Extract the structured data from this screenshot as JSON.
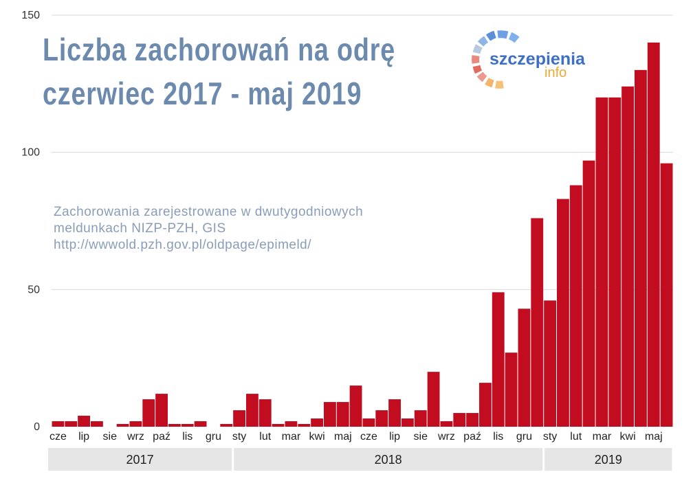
{
  "title_lines": [
    "Liczba zachorowań na odrę",
    "czerwiec 2017 - maj 2019"
  ],
  "subtitle_lines": [
    "Zachorowania zarejestrowane w dwutygodniowych",
    "meldunkach NIZP-PZH, GIS",
    "http://wwwold.pzh.gov.pl/oldpage/epimeld/"
  ],
  "logo": {
    "word1": "szczepienia",
    "word2": "info"
  },
  "colors": {
    "bar": "#c20c1f",
    "title": "#6c8aad",
    "subtitle": "#8a9db8",
    "grid": "#d9d9d9",
    "year_box": "#e6e6e6"
  },
  "chart_data": {
    "type": "bar",
    "title": "Liczba zachorowań na odrę czerwiec 2017 - maj 2019",
    "xlabel": "",
    "ylabel": "",
    "ylim": [
      0,
      150
    ],
    "yticks": [
      0,
      50,
      100,
      150
    ],
    "grid": true,
    "series": [
      {
        "name": "Zachorowania",
        "values": [
          2,
          2,
          4,
          2,
          0,
          1,
          2,
          10,
          12,
          1,
          1,
          2,
          0,
          1,
          6,
          12,
          10,
          1,
          2,
          1,
          3,
          9,
          9,
          15,
          3,
          6,
          10,
          3,
          6,
          20,
          2,
          5,
          5,
          16,
          49,
          27,
          43,
          76,
          46,
          83,
          88,
          97,
          120,
          120,
          124,
          130,
          140,
          96
        ]
      }
    ],
    "month_labels": [
      {
        "label": "cze",
        "index": 0.5
      },
      {
        "label": "lip",
        "index": 2.5
      },
      {
        "label": "sie",
        "index": 4.5
      },
      {
        "label": "wrz",
        "index": 6.5
      },
      {
        "label": "paź",
        "index": 8.5
      },
      {
        "label": "lis",
        "index": 10.5
      },
      {
        "label": "gru",
        "index": 12.5
      },
      {
        "label": "sty",
        "index": 14.5
      },
      {
        "label": "lut",
        "index": 16.5
      },
      {
        "label": "mar",
        "index": 18.5
      },
      {
        "label": "kwi",
        "index": 20.5
      },
      {
        "label": "maj",
        "index": 22.5
      },
      {
        "label": "cze",
        "index": 24.5
      },
      {
        "label": "lip",
        "index": 26.5
      },
      {
        "label": "sie",
        "index": 28.5
      },
      {
        "label": "wrz",
        "index": 30.5
      },
      {
        "label": "paź",
        "index": 32.5
      },
      {
        "label": "lis",
        "index": 34.5
      },
      {
        "label": "gru",
        "index": 36.5
      },
      {
        "label": "sty",
        "index": 38.5
      },
      {
        "label": "lut",
        "index": 40.5
      },
      {
        "label": "mar",
        "index": 42.5
      },
      {
        "label": "kwi",
        "index": 44.5
      },
      {
        "label": "maj",
        "index": 46.5
      }
    ],
    "years": [
      {
        "label": "2017",
        "start_index": 0,
        "end_index": 14
      },
      {
        "label": "2018",
        "start_index": 14,
        "end_index": 38
      },
      {
        "label": "2019",
        "start_index": 38,
        "end_index": 48
      }
    ]
  }
}
